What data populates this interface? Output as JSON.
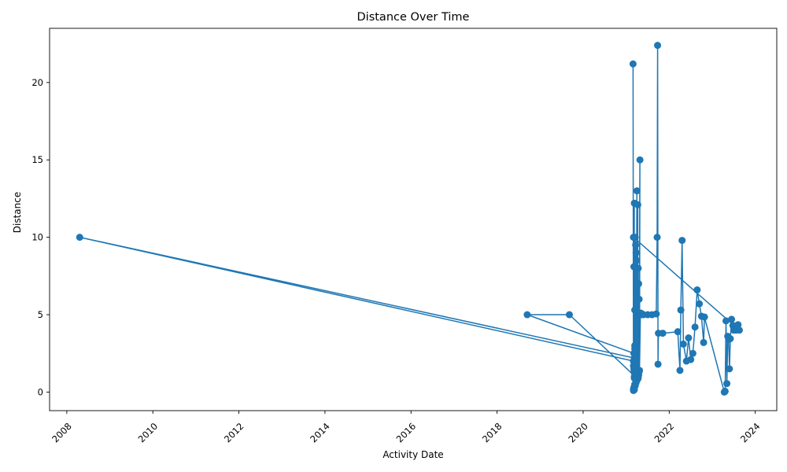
{
  "chart_data": {
    "type": "line",
    "title": "Distance Over Time",
    "xlabel": "Activity Date",
    "ylabel": "Distance",
    "xlim": [
      2007.6,
      2024.5
    ],
    "ylim": [
      -1.2,
      23.5
    ],
    "x_ticks": [
      2008,
      2010,
      2012,
      2014,
      2016,
      2018,
      2020,
      2022,
      2024
    ],
    "x_tick_labels": [
      "2008",
      "2010",
      "2012",
      "2014",
      "2016",
      "2018",
      "2020",
      "2022",
      "2024"
    ],
    "y_ticks": [
      0,
      5,
      10,
      15,
      20
    ],
    "y_tick_labels": [
      "0",
      "5",
      "10",
      "15",
      "20"
    ],
    "grid": false,
    "color": "#1f77b4",
    "series": [
      {
        "name": "Distance",
        "x": [
          2021.16,
          2021.17,
          2021.18,
          2021.17,
          2021.19,
          2021.18,
          2021.2,
          2021.19,
          2021.21,
          2021.2,
          2021.22,
          2021.21,
          2021.23,
          2021.22,
          2021.24,
          2021.23,
          2021.25,
          2021.24,
          2021.26,
          2021.25,
          2021.27,
          2021.26,
          2021.28,
          2021.27,
          2021.29,
          2021.28,
          2021.3,
          2021.29,
          2021.31,
          2021.3,
          2021.32,
          2021.31,
          2021.33,
          2021.34,
          2021.35,
          2021.37,
          2021.4,
          2021.5,
          2021.6,
          2021.7,
          2021.72,
          2021.73,
          2021.74,
          2021.75,
          2021.85,
          2022.2,
          2022.25,
          2022.27,
          2022.3,
          2022.33,
          2022.4,
          2022.45,
          2022.5,
          2022.55,
          2022.6,
          2022.65,
          2022.7,
          2022.75,
          2022.8,
          2022.82,
          2023.28,
          2023.3,
          2023.32,
          2023.34,
          2023.36,
          2023.38,
          2023.4,
          2023.42,
          2023.45,
          2023.48,
          2023.5,
          2023.55,
          2023.6,
          2023.63,
          2021.17,
          2021.18,
          2021.2,
          2021.19,
          2021.21,
          2019.68,
          2018.7,
          2021.18,
          2021.22,
          2021.17,
          2008.3,
          2021.19,
          2021.2,
          2021.21,
          2021.17,
          2021.18,
          2021.19
        ],
        "y": [
          21.2,
          0.2,
          8.1,
          0.1,
          12.2,
          0.3,
          5.3,
          0.15,
          10.0,
          0.5,
          9.5,
          0.4,
          9.0,
          0.8,
          8.5,
          0.6,
          13.0,
          1.0,
          6.9,
          0.9,
          12.1,
          0.8,
          8.0,
          1.2,
          7.0,
          0.9,
          6.0,
          1.1,
          5.0,
          1.3,
          15.0,
          1.4,
          5.0,
          5.1,
          5.0,
          5.05,
          5.0,
          5.0,
          5.0,
          5.05,
          10.0,
          22.4,
          1.8,
          3.8,
          3.8,
          3.9,
          1.4,
          5.3,
          9.8,
          3.1,
          2.0,
          3.5,
          2.1,
          2.5,
          4.2,
          6.6,
          5.7,
          4.9,
          3.2,
          4.85,
          0.0,
          0.05,
          4.6,
          0.55,
          3.6,
          3.4,
          1.5,
          3.45,
          4.7,
          4.3,
          4.0,
          4.0,
          4.35,
          4.0,
          10.0,
          1.5,
          3.0,
          0.9,
          1.0,
          5.0,
          5.0,
          2.5,
          2.0,
          2.0,
          10.0,
          2.2,
          2.8,
          2.0,
          1.7,
          1.3,
          1.0
        ]
      }
    ]
  }
}
